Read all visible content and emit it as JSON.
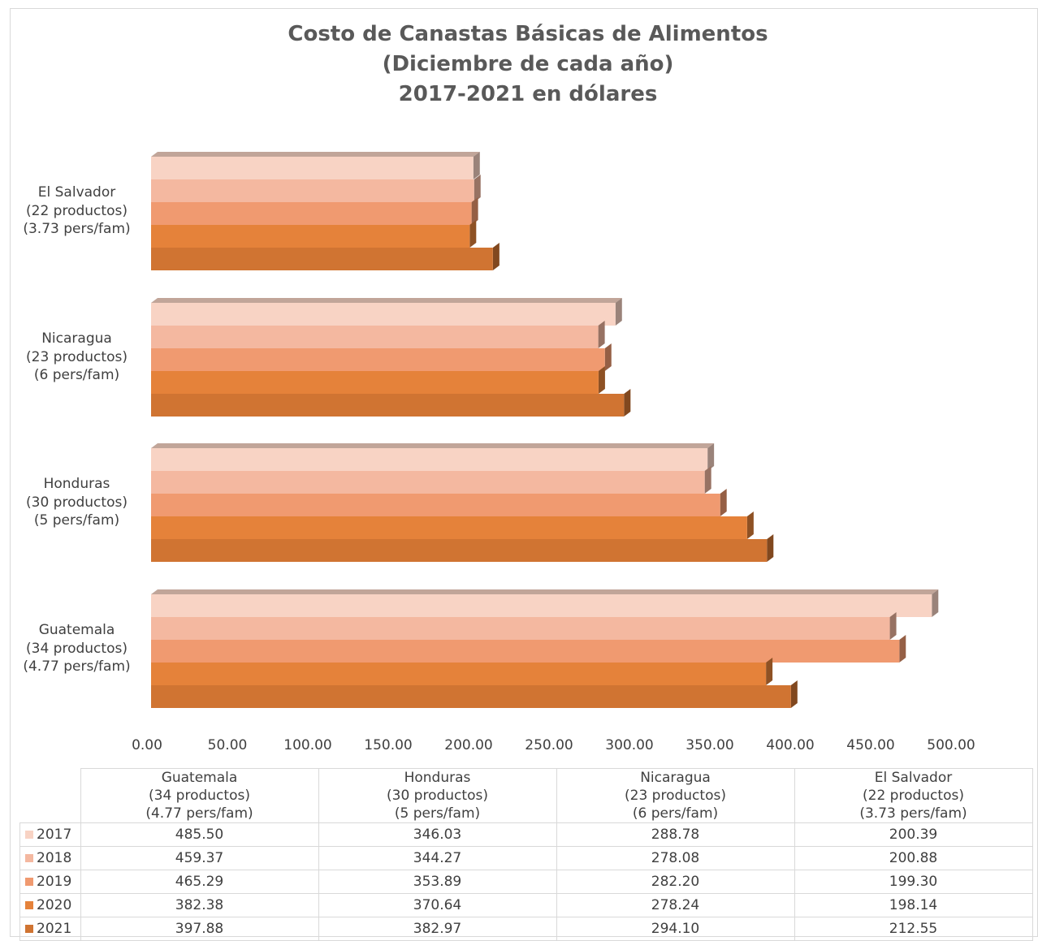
{
  "chart_data": {
    "type": "bar",
    "orientation": "horizontal",
    "three_d": true,
    "title_lines": [
      "Costo de Canastas Básicas de Alimentos",
      "(Diciembre de cada año)",
      "2017-2021 en dólares"
    ],
    "categories": [
      {
        "name": "Guatemala",
        "detail": [
          "(34 productos)",
          "(4.77 pers/fam)"
        ]
      },
      {
        "name": "Honduras",
        "detail": [
          "(30 productos)",
          "(5 pers/fam)"
        ]
      },
      {
        "name": "Nicaragua",
        "detail": [
          "(23 productos)",
          "(6 pers/fam)"
        ]
      },
      {
        "name": "El Salvador",
        "detail": [
          "(22 productos)",
          "(3.73 pers/fam)"
        ]
      }
    ],
    "series": [
      {
        "name": "2017",
        "color": "#f8d3c4",
        "values": [
          485.5,
          346.03,
          288.78,
          200.39
        ],
        "labels": [
          "485.50",
          "346.03",
          "288.78",
          "200.39"
        ]
      },
      {
        "name": "2018",
        "color": "#f4b8a0",
        "values": [
          459.37,
          344.27,
          278.08,
          200.88
        ],
        "labels": [
          "459.37",
          "344.27",
          "278.08",
          "200.88"
        ]
      },
      {
        "name": "2019",
        "color": "#f09a70",
        "values": [
          465.29,
          353.89,
          282.2,
          199.3
        ],
        "labels": [
          "465.29",
          "353.89",
          "282.20",
          "199.30"
        ]
      },
      {
        "name": "2020",
        "color": "#e5823a",
        "values": [
          382.38,
          370.64,
          278.24,
          198.14
        ],
        "labels": [
          "382.38",
          "370.64",
          "278.24",
          "198.14"
        ]
      },
      {
        "name": "2021",
        "color": "#d07432",
        "values": [
          397.88,
          382.97,
          294.1,
          212.55
        ],
        "labels": [
          "397.88",
          "382.97",
          "294.10",
          "212.55"
        ]
      }
    ],
    "xlim": [
      0,
      500
    ],
    "xticks": [
      "0.00",
      "50.00",
      "100.00",
      "150.00",
      "200.00",
      "250.00",
      "300.00",
      "350.00",
      "400.00",
      "450.00",
      "500.00"
    ],
    "category_order_top_to_bottom": [
      "El Salvador",
      "Nicaragua",
      "Honduras",
      "Guatemala"
    ],
    "grid": false,
    "legend": "data table below chart"
  }
}
